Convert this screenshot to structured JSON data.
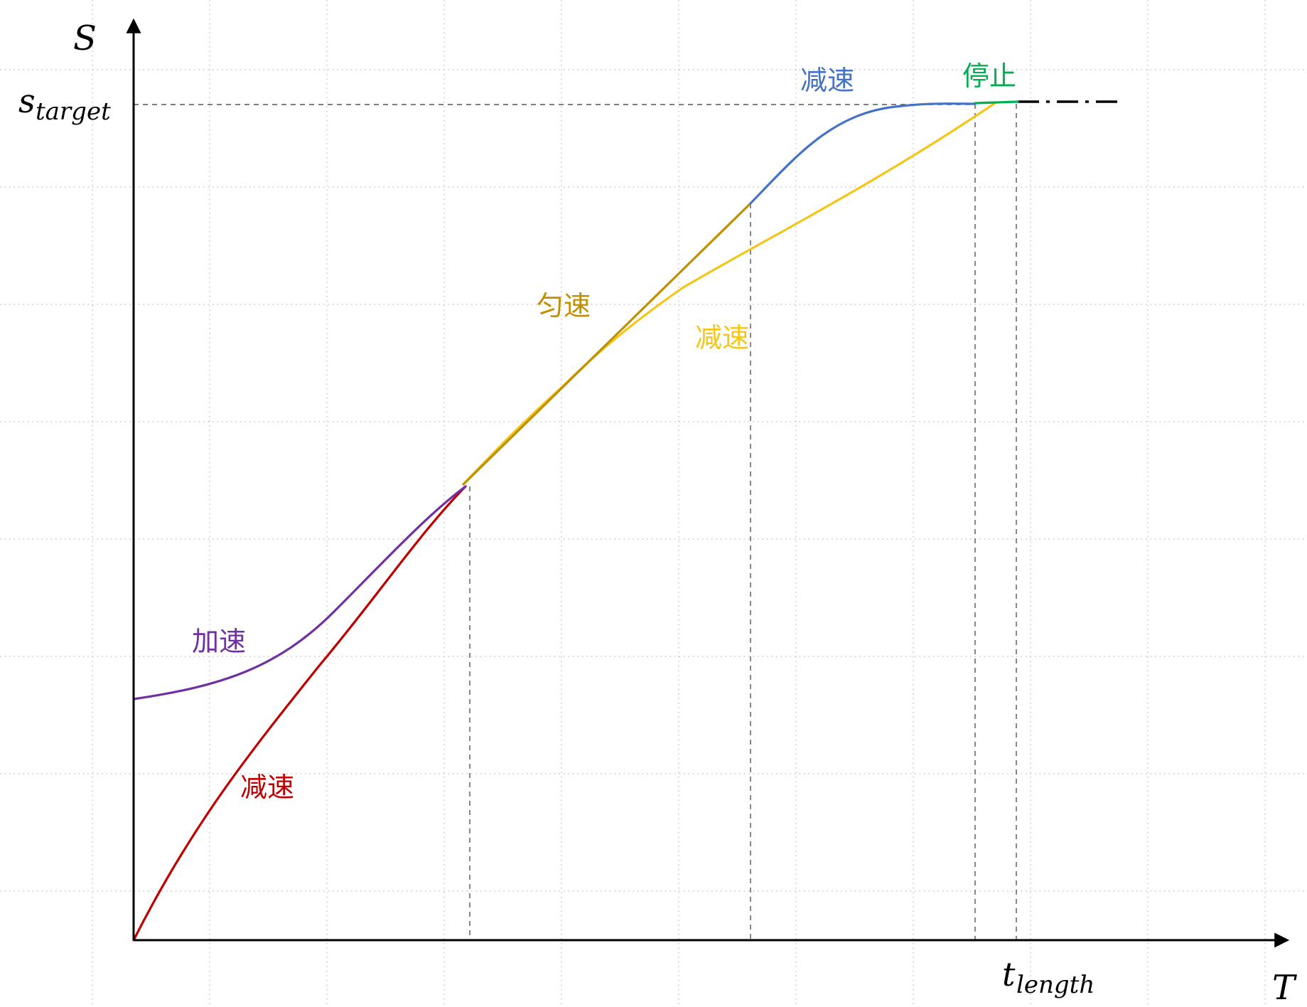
{
  "diagram": {
    "axes": {
      "y_label": "S",
      "x_label": "T",
      "s_target_main": "s",
      "s_target_sub": "target",
      "t_length_main": "t",
      "t_length_sub": "length"
    },
    "labels": {
      "purple_accel": "加速",
      "red_decel": "减速",
      "olive_uniform": "匀速",
      "yellow_decel": "减速",
      "blue_decel": "减速",
      "green_stop": "停止"
    },
    "colors": {
      "purple": "#7030a0",
      "red": "#c00000",
      "olive": "#bf9000",
      "yellow": "#f5c518",
      "blue": "#4472c4",
      "green": "#00b050",
      "axis": "#000000",
      "guide": "#555555",
      "grid": "#b9b9b9"
    },
    "grid": "dotted"
  }
}
